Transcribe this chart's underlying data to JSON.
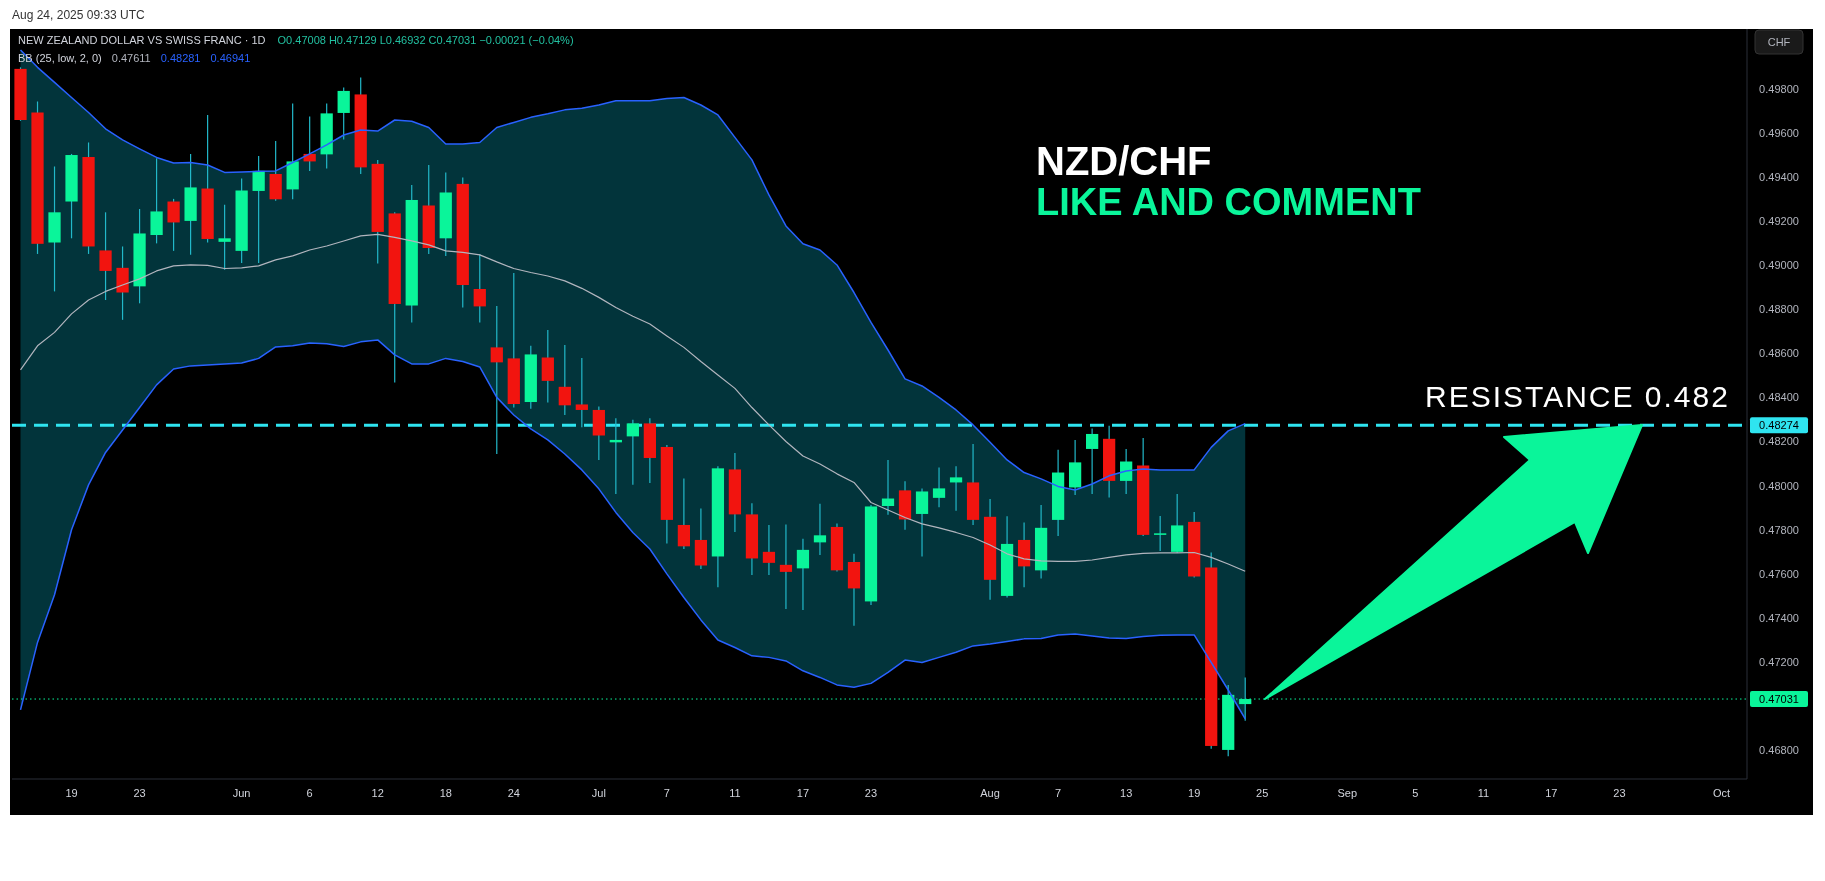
{
  "chart_data": {
    "type": "candlestick",
    "title": "NEW ZEALAND DOLLAR VS SWISS FRANC · 1D",
    "ylabel": "CHF",
    "annotations": [
      "Aug 24, 2025 09:33 UTC",
      "O0.47008 H0.47129 L0.46932 C0.47031 −0.00021 (−0.04%)",
      "NZD/CHF",
      "LIKE AND COMMENT",
      "RESISTANCE 0.482",
      "0.47611",
      "0.48281",
      "0.46941"
    ],
    "categories": [
      null,
      null,
      null,
      "19",
      null,
      null,
      null,
      "23",
      null,
      null,
      null,
      null,
      null,
      "Jun",
      null,
      null,
      null,
      "6",
      null,
      null,
      null,
      "12",
      null,
      null,
      null,
      "18",
      null,
      null,
      null,
      "24",
      null,
      null,
      null,
      null,
      "Jul",
      null,
      null,
      null,
      "7",
      null,
      null,
      null,
      "11",
      null,
      null,
      null,
      "17",
      null,
      null,
      null,
      "23",
      null,
      null,
      null,
      null,
      null,
      null,
      "Aug",
      null,
      null,
      null,
      "7",
      null,
      null,
      null,
      "13",
      null,
      null,
      null,
      "19",
      null,
      null,
      null,
      "25",
      null,
      null,
      null,
      null,
      "Sep",
      null,
      null,
      null,
      "5",
      null,
      null,
      null,
      "11",
      null,
      null,
      null,
      "17",
      null,
      null,
      null,
      "23",
      null,
      null,
      null,
      null,
      null,
      "Oct",
      null
    ],
    "ohlc": [
      [
        0.49891,
        0.49898,
        0.49655,
        0.49659
      ],
      [
        0.49693,
        0.49743,
        0.49051,
        0.49097
      ],
      [
        0.49103,
        0.49448,
        0.48881,
        0.4924
      ],
      [
        0.49289,
        0.49505,
        0.49122,
        0.495
      ],
      [
        0.49491,
        0.49557,
        0.49051,
        0.49085
      ],
      [
        0.49067,
        0.4924,
        0.48842,
        0.48974
      ],
      [
        0.48988,
        0.49085,
        0.48752,
        0.48876
      ],
      [
        0.48904,
        0.49255,
        0.48827,
        0.49144
      ],
      [
        0.49137,
        0.49485,
        0.49099,
        0.49244
      ],
      [
        0.49289,
        0.49301,
        0.49065,
        0.49194
      ],
      [
        0.49201,
        0.49505,
        0.49047,
        0.49353
      ],
      [
        0.49348,
        0.49682,
        0.49103,
        0.49119
      ],
      [
        0.49106,
        0.49274,
        0.48979,
        0.49122
      ],
      [
        0.49065,
        0.49394,
        0.4901,
        0.49339
      ],
      [
        0.49337,
        0.49496,
        0.4901,
        0.49428
      ],
      [
        0.49414,
        0.49564,
        0.49292,
        0.49299
      ],
      [
        0.49344,
        0.49734,
        0.49299,
        0.49471
      ],
      [
        0.49505,
        0.49675,
        0.49428,
        0.49471
      ],
      [
        0.49503,
        0.49734,
        0.49439,
        0.49689
      ],
      [
        0.49691,
        0.49807,
        0.49571,
        0.49791
      ],
      [
        0.49775,
        0.49852,
        0.49414,
        0.49444
      ],
      [
        0.4946,
        0.49478,
        0.49008,
        0.49151
      ],
      [
        0.49235,
        0.4924,
        0.48468,
        0.48824
      ],
      [
        0.48817,
        0.49364,
        0.4874,
        0.49296
      ],
      [
        0.49271,
        0.49455,
        0.49051,
        0.49078
      ],
      [
        0.49122,
        0.49421,
        0.49042,
        0.4933
      ],
      [
        0.49369,
        0.49398,
        0.48808,
        0.4891
      ],
      [
        0.48892,
        0.49051,
        0.4874,
        0.48813
      ],
      [
        0.48627,
        0.48815,
        0.48143,
        0.48559
      ],
      [
        0.48577,
        0.48965,
        0.48354,
        0.4837
      ],
      [
        0.48379,
        0.48634,
        0.48348,
        0.48595
      ],
      [
        0.48581,
        0.48706,
        0.48377,
        0.48475
      ],
      [
        0.48448,
        0.48638,
        0.4832,
        0.48364
      ],
      [
        0.48368,
        0.48579,
        0.48264,
        0.48343
      ],
      [
        0.48343,
        0.48359,
        0.48116,
        0.48227
      ],
      [
        0.48196,
        0.48305,
        0.47962,
        0.48207
      ],
      [
        0.48223,
        0.48298,
        0.48003,
        0.48282
      ],
      [
        0.48282,
        0.48305,
        0.48012,
        0.48125
      ],
      [
        0.48175,
        0.48184,
        0.47737,
        0.47844
      ],
      [
        0.47821,
        0.48032,
        0.47712,
        0.47724
      ],
      [
        0.47753,
        0.47896,
        0.47621,
        0.47637
      ],
      [
        0.47678,
        0.48087,
        0.47538,
        0.48078
      ],
      [
        0.48073,
        0.48148,
        0.47789,
        0.47869
      ],
      [
        0.47869,
        0.47919,
        0.47594,
        0.47669
      ],
      [
        0.47699,
        0.47821,
        0.47594,
        0.47649
      ],
      [
        0.4764,
        0.47823,
        0.4744,
        0.47608
      ],
      [
        0.47624,
        0.47758,
        0.47435,
        0.47708
      ],
      [
        0.47742,
        0.47917,
        0.47685,
        0.47774
      ],
      [
        0.47812,
        0.47828,
        0.4761,
        0.47615
      ],
      [
        0.47653,
        0.4769,
        0.47363,
        0.47533
      ],
      [
        0.47474,
        0.47912,
        0.47458,
        0.47905
      ],
      [
        0.47907,
        0.48116,
        0.47867,
        0.47941
      ],
      [
        0.47978,
        0.48019,
        0.47799,
        0.47846
      ],
      [
        0.47871,
        0.47987,
        0.47678,
        0.47973
      ],
      [
        0.47944,
        0.48082,
        0.47901,
        0.47987
      ],
      [
        0.48014,
        0.48087,
        0.47885,
        0.48037
      ],
      [
        0.48014,
        0.48189,
        0.47821,
        0.47844
      ],
      [
        0.47858,
        0.47939,
        0.47481,
        0.47572
      ],
      [
        0.47499,
        0.4786,
        0.47492,
        0.47735
      ],
      [
        0.47753,
        0.47832,
        0.47538,
        0.47633
      ],
      [
        0.47615,
        0.47912,
        0.47578,
        0.47808
      ],
      [
        0.47844,
        0.48162,
        0.47771,
        0.48059
      ],
      [
        0.47991,
        0.48207,
        0.47957,
        0.48105
      ],
      [
        0.48166,
        0.48259,
        0.47962,
        0.48234
      ],
      [
        0.48212,
        0.48271,
        0.47946,
        0.48021
      ],
      [
        0.48021,
        0.48166,
        0.47962,
        0.48109
      ],
      [
        0.48091,
        0.48216,
        0.47771,
        0.47776
      ],
      [
        0.47776,
        0.47862,
        0.47703,
        0.47783
      ],
      [
        0.47699,
        0.47962,
        0.47694,
        0.47819
      ],
      [
        0.47835,
        0.4788,
        0.47583,
        0.47587
      ],
      [
        0.47628,
        0.47696,
        0.46805,
        0.46818
      ],
      [
        0.468,
        0.47095,
        0.46771,
        0.4705
      ],
      [
        0.47008,
        0.47129,
        0.46932,
        0.47031
      ],
      null,
      null,
      null,
      null,
      null,
      null,
      null,
      null,
      null,
      null,
      null,
      null,
      null,
      null,
      null,
      null,
      null,
      null,
      null,
      null,
      null,
      null,
      null,
      null,
      null,
      null,
      null,
      null,
      null
    ],
    "colors": [
      "#f2140f",
      "#f2140f",
      "#0af59a",
      "#0af59a",
      "#f2140f",
      "#f2140f",
      "#f2140f",
      "#0af59a",
      "#0af59a",
      "#f2140f",
      "#0af59a",
      "#f2140f",
      "#0af59a",
      "#0af59a",
      "#0af59a",
      "#f2140f",
      "#0af59a",
      "#f2140f",
      "#0af59a",
      "#0af59a",
      "#f2140f",
      "#f2140f",
      "#f2140f",
      "#0af59a",
      "#f2140f",
      "#0af59a",
      "#f2140f",
      "#f2140f",
      "#f2140f",
      "#f2140f",
      "#0af59a",
      "#f2140f",
      "#f2140f",
      "#f2140f",
      "#f2140f",
      "#0af59a",
      "#0af59a",
      "#f2140f",
      "#f2140f",
      "#f2140f",
      "#f2140f",
      "#0af59a",
      "#f2140f",
      "#f2140f",
      "#f2140f",
      "#f2140f",
      "#0af59a",
      "#0af59a",
      "#f2140f",
      "#f2140f",
      "#0af59a",
      "#0af59a",
      "#f2140f",
      "#0af59a",
      "#0af59a",
      "#0af59a",
      "#f2140f",
      "#f2140f",
      "#0af59a",
      "#f2140f",
      "#0af59a",
      "#0af59a",
      "#0af59a",
      "#0af59a",
      "#f2140f",
      "#0af59a",
      "#f2140f",
      "#0af59a",
      "#0af59a",
      "#f2140f",
      "#f2140f",
      "#0af59a",
      "#0af59a",
      null,
      null,
      null,
      null,
      null,
      null,
      null,
      null,
      null,
      null,
      null,
      null,
      null,
      null,
      null,
      null,
      null,
      null,
      null,
      null,
      null,
      null,
      null,
      null,
      null,
      null,
      null,
      null,
      null
    ],
    "series": [
      {
        "type": "line",
        "color": "#2962ff",
        "values": [
          0.49977,
          0.49898,
          0.4983,
          0.49761,
          0.49693,
          0.49619,
          0.49569,
          0.49528,
          0.49489,
          0.49464,
          0.49466,
          0.49455,
          0.49421,
          0.49423,
          0.49426,
          0.49428,
          0.49466,
          0.49505,
          0.49546,
          0.49591,
          0.49614,
          0.49609,
          0.49659,
          0.49653,
          0.49625,
          0.4955,
          0.4955,
          0.49557,
          0.49625,
          0.49648,
          0.49671,
          0.49687,
          0.49705,
          0.49712,
          0.49727,
          0.49746,
          0.49746,
          0.49746,
          0.49757,
          0.49761,
          0.49727,
          0.49682,
          0.4958,
          0.49478,
          0.49319,
          0.49178,
          0.49097,
          0.49069,
          0.49001,
          0.48876,
          0.4874,
          0.48615,
          0.48484,
          0.48452,
          0.484,
          0.48343,
          0.48275,
          0.48196,
          0.48116,
          0.48059,
          0.4803,
          0.47996,
          0.4798,
          0.48007,
          0.48044,
          0.48066,
          0.48075,
          0.48071,
          0.48071,
          0.48071,
          0.48173,
          0.48248,
          0.48281,
          null,
          null,
          null,
          null,
          null,
          null,
          null,
          null,
          null,
          null,
          null,
          null,
          null,
          null,
          null,
          null,
          null,
          null,
          null,
          null,
          null,
          null,
          null,
          null,
          null,
          null,
          null,
          null,
          null
        ]
      },
      {
        "type": "line",
        "color": "#2962ff",
        "values": [
          0.46982,
          0.47288,
          0.47504,
          0.47799,
          0.48003,
          0.4815,
          0.48252,
          0.48354,
          0.48457,
          0.48529,
          0.48543,
          0.48547,
          0.48552,
          0.48556,
          0.48577,
          0.48629,
          0.48634,
          0.48647,
          0.48643,
          0.48631,
          0.48652,
          0.48661,
          0.48593,
          0.48552,
          0.48552,
          0.48577,
          0.48563,
          0.48538,
          0.484,
          0.4832,
          0.48257,
          0.48207,
          0.48143,
          0.48071,
          0.47985,
          0.47878,
          0.47787,
          0.47712,
          0.47599,
          0.47492,
          0.4739,
          0.47299,
          0.47265,
          0.47227,
          0.4722,
          0.47204,
          0.47159,
          0.47129,
          0.47095,
          0.47084,
          0.47102,
          0.47152,
          0.47208,
          0.47197,
          0.4722,
          0.47243,
          0.47272,
          0.47281,
          0.47292,
          0.47304,
          0.47306,
          0.47322,
          0.47326,
          0.47317,
          0.47308,
          0.47306,
          0.47315,
          0.4732,
          0.47322,
          0.47322,
          0.47197,
          0.47072,
          0.46941,
          null,
          null,
          null,
          null,
          null,
          null,
          null,
          null,
          null,
          null,
          null,
          null,
          null,
          null,
          null,
          null,
          null,
          null,
          null,
          null,
          null,
          null,
          null,
          null,
          null,
          null,
          null,
          null,
          null
        ]
      },
      {
        "type": "line",
        "name": "BB (25, low, 2, 0)",
        "color": "#b2b5be",
        "values": [
          0.48525,
          0.48634,
          0.48695,
          0.48779,
          0.48842,
          0.48881,
          0.4891,
          0.48938,
          0.48974,
          0.48997,
          0.49001,
          0.48999,
          0.48985,
          0.48988,
          0.48997,
          0.49024,
          0.49042,
          0.49069,
          0.49087,
          0.4911,
          0.49133,
          0.4914,
          0.49126,
          0.4911,
          0.49092,
          0.49065,
          0.49058,
          0.49047,
          0.49015,
          0.48985,
          0.48967,
          0.48951,
          0.48929,
          0.48895,
          0.48854,
          0.48808,
          0.48768,
          0.48733,
          0.48679,
          0.48627,
          0.48563,
          0.48502,
          0.48441,
          0.48354,
          0.48275,
          0.482,
          0.48134,
          0.48098,
          0.48053,
          0.48014,
          0.47923,
          0.47889,
          0.47855,
          0.47826,
          0.47808,
          0.47787,
          0.47764,
          0.4773,
          0.4769,
          0.47667,
          0.47658,
          0.47656,
          0.47656,
          0.47662,
          0.47674,
          0.47685,
          0.47692,
          0.47694,
          0.47694,
          0.47696,
          0.47674,
          0.47644,
          0.47611,
          null,
          null,
          null,
          null,
          null,
          null,
          null,
          null,
          null,
          null,
          null,
          null,
          null,
          null,
          null,
          null,
          null,
          null,
          null,
          null,
          null,
          null,
          null,
          null,
          null,
          null,
          null,
          null,
          null
        ],
        "upper": [
          0.49977,
          0.49898,
          0.4983,
          0.49761,
          0.49693,
          0.49619,
          0.49569,
          0.49528,
          0.49489,
          0.49464,
          0.49466,
          0.49455,
          0.49421,
          0.49423,
          0.49426,
          0.49428,
          0.49466,
          0.49505,
          0.49546,
          0.49591,
          0.49614,
          0.49609,
          0.49659,
          0.49653,
          0.49625,
          0.4955,
          0.4955,
          0.49557,
          0.49625,
          0.49648,
          0.49671,
          0.49687,
          0.49705,
          0.49712,
          0.49727,
          0.49746,
          0.49746,
          0.49746,
          0.49757,
          0.49761,
          0.49727,
          0.49682,
          0.4958,
          0.49478,
          0.49319,
          0.49178,
          0.49097,
          0.49069,
          0.49001,
          0.48876,
          0.4874,
          0.48615,
          0.48484,
          0.48452,
          0.484,
          0.48343,
          0.48275,
          0.48196,
          0.48116,
          0.48059,
          0.4803,
          0.47996,
          0.4798,
          0.48007,
          0.48044,
          0.48066,
          0.48075,
          0.48071,
          0.48071,
          0.48071,
          0.48173,
          0.48248,
          0.48281,
          null,
          null,
          null,
          null,
          null,
          null,
          null,
          null,
          null,
          null,
          null,
          null,
          null,
          null,
          null,
          null,
          null,
          null,
          null,
          null,
          null,
          null,
          null,
          null,
          null,
          null,
          null,
          null,
          null
        ],
        "lower": [
          0.46982,
          0.47288,
          0.47504,
          0.47799,
          0.48003,
          0.4815,
          0.48252,
          0.48354,
          0.48457,
          0.48529,
          0.48543,
          0.48547,
          0.48552,
          0.48556,
          0.48577,
          0.48629,
          0.48634,
          0.48647,
          0.48643,
          0.48631,
          0.48652,
          0.48661,
          0.48593,
          0.48552,
          0.48552,
          0.48577,
          0.48563,
          0.48538,
          0.484,
          0.4832,
          0.48257,
          0.48207,
          0.48143,
          0.48071,
          0.47985,
          0.47878,
          0.47787,
          0.47712,
          0.47599,
          0.47492,
          0.4739,
          0.47299,
          0.47265,
          0.47227,
          0.4722,
          0.47204,
          0.47159,
          0.47129,
          0.47095,
          0.47084,
          0.47102,
          0.47152,
          0.47208,
          0.47197,
          0.4722,
          0.47243,
          0.47272,
          0.47281,
          0.47292,
          0.47304,
          0.47306,
          0.47322,
          0.47326,
          0.47317,
          0.47308,
          0.47306,
          0.47315,
          0.4732,
          0.47322,
          0.47322,
          0.47197,
          0.47072,
          0.46941,
          null,
          null,
          null,
          null,
          null,
          null,
          null,
          null,
          null,
          null,
          null,
          null,
          null,
          null,
          null,
          null,
          null,
          null,
          null,
          null,
          null,
          null,
          null,
          null,
          null,
          null,
          null,
          null,
          null
        ]
      }
    ],
    "ylim": [
      0.46668,
      0.50072
    ],
    "yticks": [
      {
        "value": 0.468,
        "label": "0.46800"
      },
      {
        "value": 0.472,
        "label": "0.47200"
      },
      {
        "value": 0.474,
        "label": "0.47400"
      },
      {
        "value": 0.476,
        "label": "0.47600"
      },
      {
        "value": 0.478,
        "label": "0.47800"
      },
      {
        "value": 0.48,
        "label": "0.48000"
      },
      {
        "value": 0.482,
        "label": "0.48200"
      },
      {
        "value": 0.484,
        "label": "0.48400"
      },
      {
        "value": 0.486,
        "label": "0.48600"
      },
      {
        "value": 0.488,
        "label": "0.48800"
      },
      {
        "value": 0.49,
        "label": "0.49000"
      },
      {
        "value": 0.492,
        "label": "0.49200"
      },
      {
        "value": 0.494,
        "label": "0.49400"
      },
      {
        "value": 0.496,
        "label": "0.49600"
      },
      {
        "value": 0.498,
        "label": "0.49800"
      }
    ],
    "ref_lines": [
      {
        "axis": "y",
        "value": 0.48274,
        "label": "0.48274",
        "color": "#2fe4f0",
        "line_style": "dashed"
      },
      {
        "axis": "y",
        "value": 0.47031,
        "label": "0.47031",
        "color": "#0af59a",
        "line_style": "dotted"
      }
    ],
    "legend": "top left"
  }
}
